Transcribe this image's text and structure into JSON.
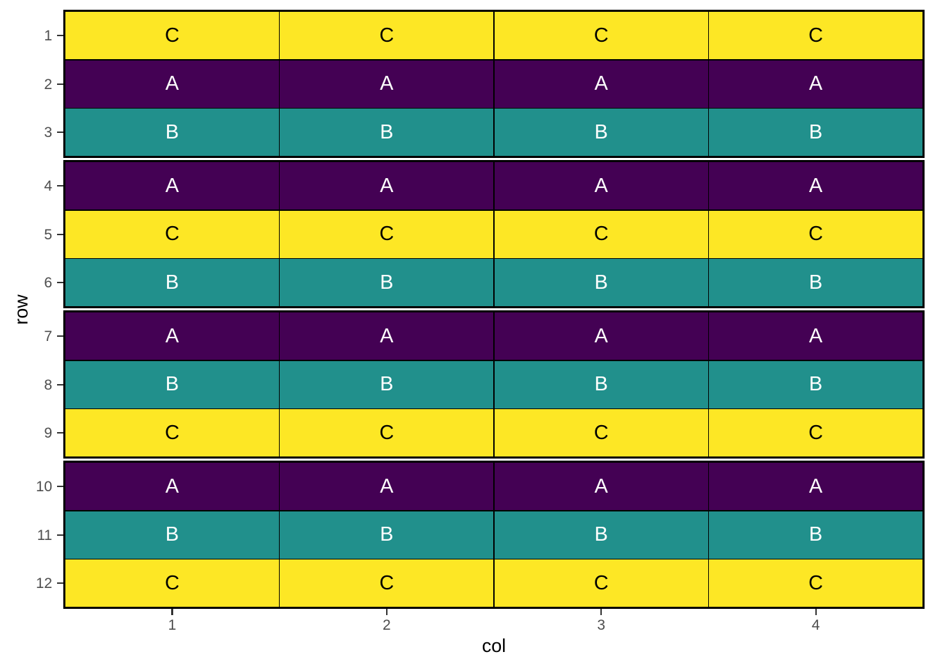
{
  "figure": {
    "background_color": "#FFFFFF",
    "panel": {
      "block_border_color": "#000000",
      "cell_line_color": "#000000",
      "block_gap_color": "#FFFFFF"
    },
    "palette": {
      "A": "#440154",
      "B": "#21908C",
      "C": "#FDE725"
    },
    "text_colors": {
      "A": "#FFFFFF",
      "B": "#FFFFFF",
      "C": "#000000"
    },
    "tick_mark_color": "#333333",
    "tick_label_color": "#4D4D4D",
    "axis_title_color": "#000000"
  },
  "chart_data": {
    "type": "heatmap",
    "title": "",
    "xlabel": "col",
    "ylabel": "row",
    "x": [
      1,
      2,
      3,
      4
    ],
    "y": [
      1,
      2,
      3,
      4,
      5,
      6,
      7,
      8,
      9,
      10,
      11,
      12
    ],
    "x_tick_labels": [
      "1",
      "2",
      "3",
      "4"
    ],
    "y_tick_labels": [
      "1",
      "2",
      "3",
      "4",
      "5",
      "6",
      "7",
      "8",
      "9",
      "10",
      "11",
      "12"
    ],
    "row_values": [
      "C",
      "A",
      "B",
      "A",
      "C",
      "B",
      "A",
      "B",
      "C",
      "A",
      "B",
      "C"
    ],
    "grid": [
      [
        "C",
        "C",
        "C",
        "C"
      ],
      [
        "A",
        "A",
        "A",
        "A"
      ],
      [
        "B",
        "B",
        "B",
        "B"
      ],
      [
        "A",
        "A",
        "A",
        "A"
      ],
      [
        "C",
        "C",
        "C",
        "C"
      ],
      [
        "B",
        "B",
        "B",
        "B"
      ],
      [
        "A",
        "A",
        "A",
        "A"
      ],
      [
        "B",
        "B",
        "B",
        "B"
      ],
      [
        "C",
        "C",
        "C",
        "C"
      ],
      [
        "A",
        "A",
        "A",
        "A"
      ],
      [
        "B",
        "B",
        "B",
        "B"
      ],
      [
        "C",
        "C",
        "C",
        "C"
      ]
    ],
    "row_blocks": [
      [
        1,
        2,
        3
      ],
      [
        4,
        5,
        6
      ],
      [
        7,
        8,
        9
      ],
      [
        10,
        11,
        12
      ]
    ],
    "legend": "none",
    "grid_lines": "off"
  }
}
